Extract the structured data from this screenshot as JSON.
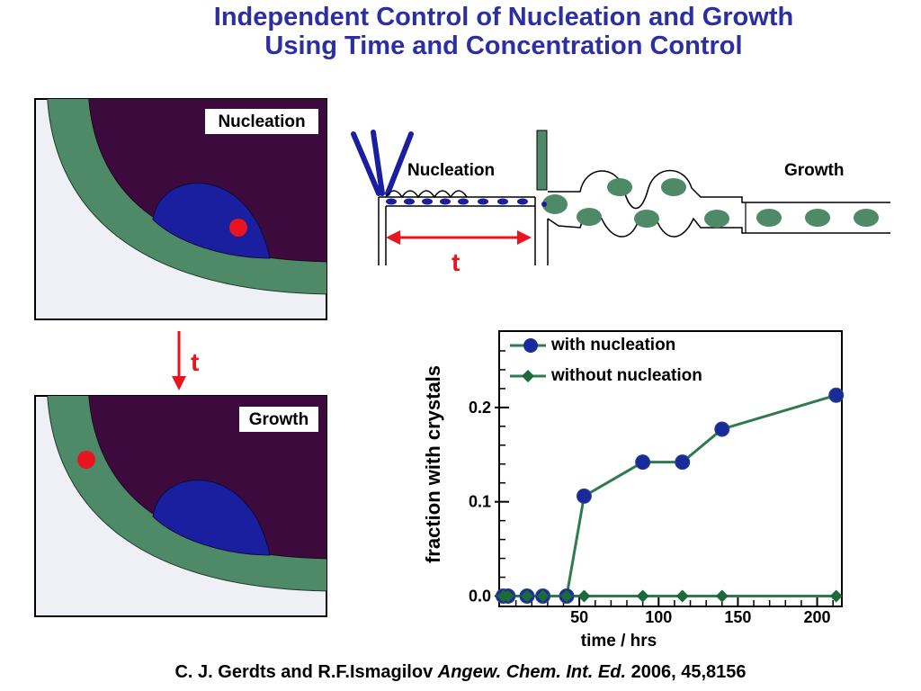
{
  "title": {
    "line1": "Independent Control of Nucleation and Growth",
    "line2": "Using Time and Concentration Control"
  },
  "panels": {
    "nucleation_label": "Nucleation",
    "growth_label": "Growth",
    "time_arrow_label": "t"
  },
  "schematic": {
    "nucleation_label": "Nucleation",
    "growth_label": "Growth",
    "time_label": "t"
  },
  "colors": {
    "title": "#2b2fa3",
    "oil_green": "#4e8a68",
    "droplet_purple": "#3c0a3c",
    "drop_blue": "#1a1fa0",
    "crystal_red": "#e8141e",
    "series_with": "#1a2a9a",
    "series_without": "#1a6a3a",
    "line_green": "#2f7a50"
  },
  "chart_data": {
    "type": "line",
    "xlabel": "time / hrs",
    "ylabel": "fraction with crystals",
    "xlim": [
      0,
      215
    ],
    "ylim": [
      -0.01,
      0.28
    ],
    "xticks": [
      50,
      100,
      150,
      200
    ],
    "yticks": [
      0.0,
      0.1,
      0.2
    ],
    "ytick_labels": [
      "0.0",
      "0.1",
      "0.2"
    ],
    "legend_position": "top-left",
    "series": [
      {
        "name": "with nucleation",
        "marker": "circle",
        "x": [
          2,
          5,
          17,
          27,
          42,
          53,
          90,
          115,
          140,
          212
        ],
        "y": [
          0.0,
          0.0,
          0.0,
          0.0,
          0.0,
          0.106,
          0.142,
          0.142,
          0.177,
          0.213
        ]
      },
      {
        "name": "without nucleation",
        "marker": "diamond",
        "x": [
          2,
          5,
          17,
          27,
          42,
          53,
          90,
          115,
          140,
          212
        ],
        "y": [
          0.0,
          0.0,
          0.0,
          0.0,
          0.0,
          0.0,
          0.0,
          0.0,
          0.0,
          0.0
        ]
      }
    ]
  },
  "citation": {
    "authors": "C. J. Gerdts and R.F.Ismagilov ",
    "journal": "Angew. Chem. Int. Ed.",
    "details": " 2006, 45,8156"
  }
}
